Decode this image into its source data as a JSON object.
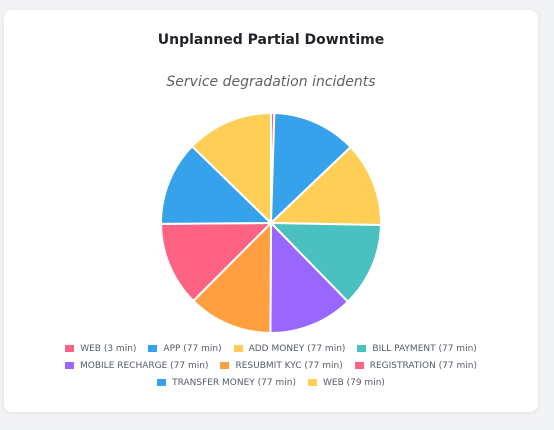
{
  "card": {
    "title": "Unplanned Partial Downtime",
    "subtitle": "Service degradation incidents"
  },
  "chart_data": {
    "type": "pie",
    "title": "Unplanned Partial Downtime",
    "subtitle": "Service degradation incidents",
    "legend_position": "bottom",
    "slices": [
      {
        "label": "WEB (3 min)",
        "value": 3,
        "color": "#ff6384"
      },
      {
        "label": "APP (77 min)",
        "value": 77,
        "color": "#36a2eb"
      },
      {
        "label": "ADD MONEY (77 min)",
        "value": 77,
        "color": "#ffce56"
      },
      {
        "label": "BILL PAYMENT (77 min)",
        "value": 77,
        "color": "#4bc0c0"
      },
      {
        "label": "MOBILE RECHARGE (77 min)",
        "value": 77,
        "color": "#9966ff"
      },
      {
        "label": "RESUBMIT KYC (77 min)",
        "value": 77,
        "color": "#ff9f40"
      },
      {
        "label": "REGISTRATION (77 min)",
        "value": 77,
        "color": "#ff6384"
      },
      {
        "label": "TRANSFER MONEY (77 min)",
        "value": 77,
        "color": "#36a2eb"
      },
      {
        "label": "WEB (79 min)",
        "value": 79,
        "color": "#ffce56"
      }
    ]
  }
}
